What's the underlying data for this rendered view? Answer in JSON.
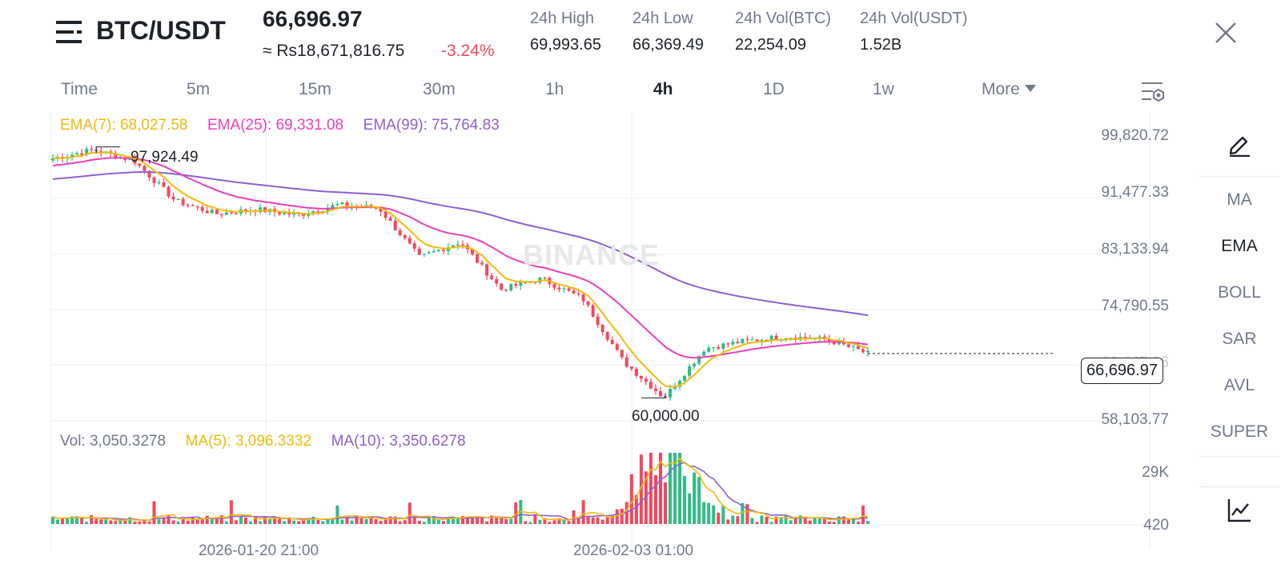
{
  "header": {
    "pair": "BTC/USDT",
    "price": "66,696.97",
    "fiat_price": "≈ Rs18,671,816.75",
    "change": "-3.24%",
    "stats": [
      {
        "label": "24h High",
        "value": "69,993.65"
      },
      {
        "label": "24h Low",
        "value": "66,369.49"
      },
      {
        "label": "24h Vol(BTC)",
        "value": "22,254.09"
      },
      {
        "label": "24h Vol(USDT)",
        "value": "1.52B"
      }
    ]
  },
  "intervals": [
    "Time",
    "5m",
    "15m",
    "30m",
    "1h",
    "4h",
    "1D",
    "1w",
    "More"
  ],
  "active_interval": "4h",
  "indicators_legend": {
    "ema7": "EMA(7): 68,027.58",
    "ema25": "EMA(25): 69,331.08",
    "ema99": "EMA(99): 75,764.83"
  },
  "price_axis": [
    "99,820.72",
    "91,477.33",
    "83,133.94",
    "74,790.55",
    "66,447.16",
    "58,103.77"
  ],
  "last_price_label": "66,696.97",
  "high_marker": "97,924.49",
  "low_marker": "60,000.00",
  "watermark": "BINANCE",
  "volume_legend": {
    "vol": "Vol: 3,050.3278",
    "ma5": "MA(5): 3,096.3332",
    "ma10": "MA(10): 3,350.6278"
  },
  "volume_axis": [
    "29K",
    "420"
  ],
  "time_axis": [
    "2026-01-20 21:00",
    "2026-02-03 01:00"
  ],
  "side_tools": [
    "MA",
    "EMA",
    "BOLL",
    "SAR",
    "AVL",
    "SUPER"
  ],
  "active_side_tool": "EMA",
  "icons": {
    "menu": "menu-icon",
    "close": "close-icon",
    "settings": "chart-settings-icon",
    "draw": "pencil-icon",
    "indicators": "line-chart-icon"
  },
  "colors": {
    "up": "#2ebd85",
    "down": "#f6465d",
    "ema7": "#f0b90b",
    "ema25": "#e93fba",
    "ema99": "#8f5fd1",
    "muted": "#707a8a",
    "text": "#1e2329"
  },
  "chart_data": {
    "type": "candlestick",
    "interval": "4h",
    "ylim": [
      58103.77,
      99820.72
    ],
    "high": 97924.49,
    "low": 60000.0,
    "last": 66696.97,
    "key_closes": [
      96200,
      97500,
      95800,
      89800,
      87800,
      88500,
      87600,
      89200,
      88700,
      81200,
      83600,
      76400,
      78000,
      75000,
      65500,
      60000,
      67500,
      68600,
      69300,
      68800,
      66700
    ],
    "ema7_last": 68027.58,
    "ema25_last": 69331.08,
    "ema99_last": 75764.83,
    "volume_ylim": [
      420,
      29000
    ]
  }
}
